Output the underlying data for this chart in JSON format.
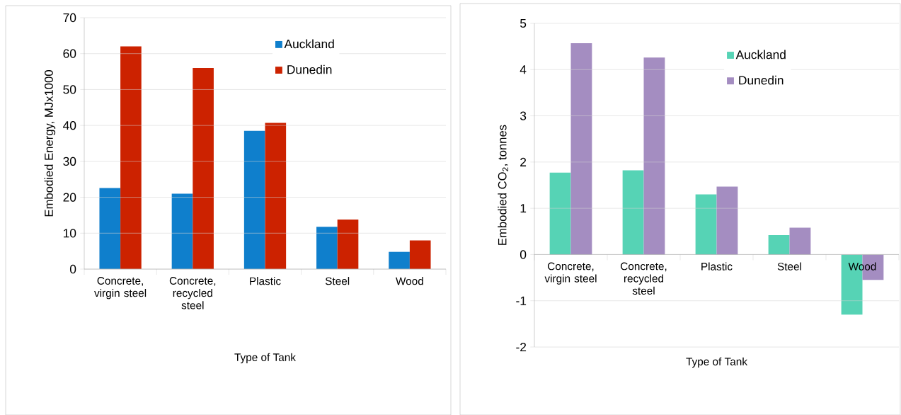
{
  "chart_data": [
    {
      "type": "bar",
      "xlabel": "Type of Tank",
      "ylabel": "Embodied Energy, MJx1000",
      "categories": [
        "Concrete, virgin steel",
        "Concrete, recycled steel",
        "Plastic",
        "Steel",
        "Wood"
      ],
      "series": [
        {
          "name": "Auckland",
          "color": "#0f7fcc",
          "values": [
            22.6,
            21,
            38.5,
            11.8,
            4.8
          ]
        },
        {
          "name": "Dunedin",
          "color": "#cc2200",
          "values": [
            62,
            56,
            40.7,
            13.8,
            8
          ]
        }
      ],
      "ylim": [
        0,
        70
      ],
      "yticks": [
        0,
        10,
        20,
        30,
        40,
        50,
        60,
        70
      ],
      "grid": "y",
      "legend": "top right"
    },
    {
      "type": "bar",
      "xlabel": "Type of Tank",
      "ylabel": "Embodied CO$_{2}$, tonnes",
      "categories": [
        "Concrete, virgin steel",
        "Concrete, recycled steel",
        "Plastic",
        "Steel",
        "Wood"
      ],
      "series": [
        {
          "name": "Auckland",
          "color": "#56d3b5",
          "values": [
            1.77,
            1.82,
            1.3,
            0.42,
            -1.3
          ]
        },
        {
          "name": "Dunedin",
          "color": "#a48dc1",
          "values": [
            4.57,
            4.26,
            1.47,
            0.58,
            -0.55
          ]
        }
      ],
      "ylim": [
        -2,
        5
      ],
      "yticks": [
        -2,
        -1,
        0,
        1,
        2,
        3,
        4,
        5
      ],
      "grid": "y",
      "legend": "top right"
    }
  ]
}
